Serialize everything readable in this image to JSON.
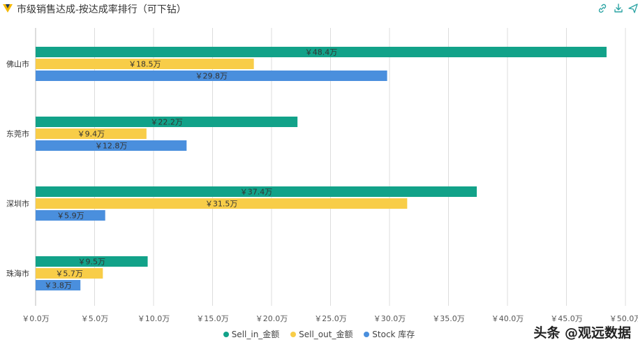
{
  "header": {
    "title": "市级销售达成-按达成率排行（可下钻）"
  },
  "icons": [
    "link-icon",
    "download-icon",
    "share-icon"
  ],
  "watermark": "头条 @观远数据",
  "colors": {
    "sell_in": "#12A289",
    "sell_out": "#F8CD48",
    "stock": "#4A8FDD",
    "grid": "#dcdcdc"
  },
  "chart_data": {
    "type": "bar",
    "orientation": "horizontal",
    "title": "市级销售达成-按达成率排行（可下钻）",
    "categories": [
      "佛山市",
      "东莞市",
      "深圳市",
      "珠海市"
    ],
    "series": [
      {
        "name": "Sell_in_金额",
        "values": [
          48.4,
          22.2,
          37.4,
          9.5
        ],
        "labels": [
          "￥48.4万",
          "￥22.2万",
          "￥37.4万",
          "￥9.5万"
        ]
      },
      {
        "name": "Sell_out_金额",
        "values": [
          18.5,
          9.4,
          31.5,
          5.7
        ],
        "labels": [
          "￥18.5万",
          "￥9.4万",
          "￥31.5万",
          "￥5.7万"
        ]
      },
      {
        "name": "Stock 库存",
        "values": [
          29.8,
          12.8,
          5.9,
          3.8
        ],
        "labels": [
          "￥29.8万",
          "￥12.8万",
          "￥5.9万",
          "￥3.8万"
        ]
      }
    ],
    "xlim": [
      0,
      50
    ],
    "xticks": [
      0,
      5,
      10,
      15,
      20,
      25,
      30,
      35,
      40,
      45,
      50
    ],
    "xtick_labels": [
      "￥0.0万",
      "￥5.0万",
      "￥10.0万",
      "￥15.0万",
      "￥20.0万",
      "￥25.0万",
      "￥30.0万",
      "￥35.0万",
      "￥40.0万",
      "￥45.0万",
      "￥50.0万"
    ],
    "legend_position": "bottom-center",
    "grid": true
  }
}
